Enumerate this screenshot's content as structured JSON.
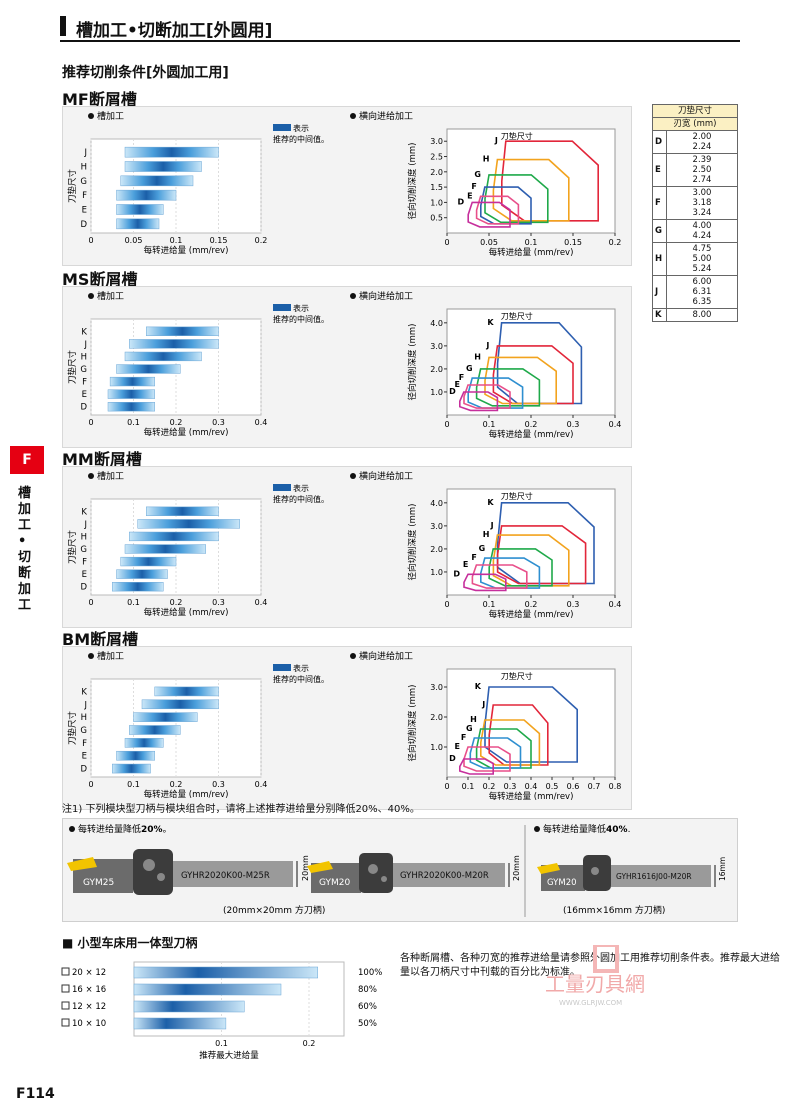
{
  "header": {
    "title": "槽加工•切断加工[外圆用]"
  },
  "intro": "推荐切削条件[外圆加工用]",
  "side": {
    "tab": "F",
    "text": "槽加工•切断加工"
  },
  "common": {
    "groove_label": "槽加工",
    "traverse_label": "横向进给加工",
    "legend_line1": "表示",
    "legend_line2": "推荐的中间值。",
    "feed_axis": "每转进给量 (mm/rev)",
    "insert_axis": "刀垫尺寸",
    "depth_axis": "径向切削深度 (mm)",
    "insert_size_label": "刀垫尺寸"
  },
  "sections": [
    {
      "title": "MF断屑槽",
      "bar_ticks": [
        "0",
        "0.05",
        "0.1",
        "0.15",
        "0.2"
      ],
      "bar_max": 0.2,
      "bars": [
        {
          "k": "J",
          "lo": 0.04,
          "hi": 0.15
        },
        {
          "k": "H",
          "lo": 0.04,
          "hi": 0.13
        },
        {
          "k": "G",
          "lo": 0.035,
          "hi": 0.12
        },
        {
          "k": "F",
          "lo": 0.03,
          "hi": 0.1
        },
        {
          "k": "E",
          "lo": 0.03,
          "hi": 0.085
        },
        {
          "k": "D",
          "lo": 0.03,
          "hi": 0.08
        }
      ],
      "tr_xticks": [
        "0",
        "0.05",
        "0.1",
        "0.15",
        "0.2"
      ],
      "tr_xmax": 0.2,
      "tr_yticks": [
        "0.5",
        "1.0",
        "1.5",
        "2.0",
        "2.5",
        "3.0"
      ],
      "tr_ymax": 3.4,
      "regions": [
        {
          "k": "J",
          "c": "#e2263a",
          "x0": 0.07,
          "x1": 0.18,
          "d0": 0.4,
          "d1": 3.0
        },
        {
          "k": "H",
          "c": "#f2a31e",
          "x0": 0.06,
          "x1": 0.145,
          "d0": 0.4,
          "d1": 2.4
        },
        {
          "k": "G",
          "c": "#1fa94a",
          "x0": 0.05,
          "x1": 0.12,
          "d0": 0.35,
          "d1": 1.9
        },
        {
          "k": "F",
          "c": "#2e5fb0",
          "x0": 0.045,
          "x1": 0.1,
          "d0": 0.3,
          "d1": 1.5
        },
        {
          "k": "E",
          "c": "#e84f8a",
          "x0": 0.04,
          "x1": 0.085,
          "d0": 0.3,
          "d1": 1.2
        },
        {
          "k": "D",
          "c": "#c62f9c",
          "x0": 0.03,
          "x1": 0.075,
          "d0": 0.2,
          "d1": 1.0
        }
      ]
    },
    {
      "title": "MS断屑槽",
      "bar_ticks": [
        "0",
        "0.1",
        "0.2",
        "0.3",
        "0.4"
      ],
      "bar_max": 0.4,
      "bars": [
        {
          "k": "K",
          "lo": 0.13,
          "hi": 0.3
        },
        {
          "k": "J",
          "lo": 0.09,
          "hi": 0.3
        },
        {
          "k": "H",
          "lo": 0.08,
          "hi": 0.26
        },
        {
          "k": "G",
          "lo": 0.06,
          "hi": 0.21
        },
        {
          "k": "F",
          "lo": 0.045,
          "hi": 0.15
        },
        {
          "k": "E",
          "lo": 0.04,
          "hi": 0.15
        },
        {
          "k": "D",
          "lo": 0.04,
          "hi": 0.15
        }
      ],
      "tr_xticks": [
        "0",
        "0.1",
        "0.2",
        "0.3",
        "0.4"
      ],
      "tr_xmax": 0.4,
      "tr_yticks": [
        "1.0",
        "2.0",
        "3.0",
        "4.0"
      ],
      "tr_ymax": 4.6,
      "regions": [
        {
          "k": "K",
          "c": "#2e5fb0",
          "x0": 0.13,
          "x1": 0.32,
          "d0": 0.5,
          "d1": 4.0
        },
        {
          "k": "J",
          "c": "#e2263a",
          "x0": 0.12,
          "x1": 0.3,
          "d0": 0.5,
          "d1": 3.0
        },
        {
          "k": "H",
          "c": "#f2a31e",
          "x0": 0.1,
          "x1": 0.26,
          "d0": 0.5,
          "d1": 2.5
        },
        {
          "k": "G",
          "c": "#1fa94a",
          "x0": 0.08,
          "x1": 0.22,
          "d0": 0.4,
          "d1": 2.0
        },
        {
          "k": "F",
          "c": "#2e8fd0",
          "x0": 0.06,
          "x1": 0.18,
          "d0": 0.3,
          "d1": 1.6
        },
        {
          "k": "E",
          "c": "#e84f8a",
          "x0": 0.05,
          "x1": 0.15,
          "d0": 0.3,
          "d1": 1.3
        },
        {
          "k": "D",
          "c": "#c62f9c",
          "x0": 0.04,
          "x1": 0.12,
          "d0": 0.2,
          "d1": 1.0
        }
      ]
    },
    {
      "title": "MM断屑槽",
      "bar_ticks": [
        "0",
        "0.1",
        "0.2",
        "0.3",
        "0.4"
      ],
      "bar_max": 0.4,
      "bars": [
        {
          "k": "K",
          "lo": 0.13,
          "hi": 0.3
        },
        {
          "k": "J",
          "lo": 0.11,
          "hi": 0.35
        },
        {
          "k": "H",
          "lo": 0.09,
          "hi": 0.3
        },
        {
          "k": "G",
          "lo": 0.08,
          "hi": 0.27
        },
        {
          "k": "F",
          "lo": 0.07,
          "hi": 0.2
        },
        {
          "k": "E",
          "lo": 0.06,
          "hi": 0.18
        },
        {
          "k": "D",
          "lo": 0.05,
          "hi": 0.17
        }
      ],
      "tr_xticks": [
        "0",
        "0.1",
        "0.2",
        "0.3",
        "0.4"
      ],
      "tr_xmax": 0.4,
      "tr_yticks": [
        "1.0",
        "2.0",
        "3.0",
        "4.0"
      ],
      "tr_ymax": 4.6,
      "regions": [
        {
          "k": "K",
          "c": "#2e5fb0",
          "x0": 0.13,
          "x1": 0.35,
          "d0": 0.5,
          "d1": 4.0
        },
        {
          "k": "J",
          "c": "#e2263a",
          "x0": 0.13,
          "x1": 0.33,
          "d0": 0.5,
          "d1": 3.0
        },
        {
          "k": "H",
          "c": "#f2a31e",
          "x0": 0.12,
          "x1": 0.29,
          "d0": 0.4,
          "d1": 2.6
        },
        {
          "k": "G",
          "c": "#1fa94a",
          "x0": 0.11,
          "x1": 0.25,
          "d0": 0.4,
          "d1": 2.0
        },
        {
          "k": "F",
          "c": "#2e8fd0",
          "x0": 0.09,
          "x1": 0.22,
          "d0": 0.3,
          "d1": 1.6
        },
        {
          "k": "E",
          "c": "#e84f8a",
          "x0": 0.07,
          "x1": 0.19,
          "d0": 0.3,
          "d1": 1.3
        },
        {
          "k": "D",
          "c": "#c62f9c",
          "x0": 0.05,
          "x1": 0.14,
          "d0": 0.2,
          "d1": 0.9
        }
      ]
    },
    {
      "title": "BM断屑槽",
      "bar_ticks": [
        "0",
        "0.1",
        "0.2",
        "0.3",
        "0.4"
      ],
      "bar_max": 0.4,
      "bars": [
        {
          "k": "K",
          "lo": 0.15,
          "hi": 0.3
        },
        {
          "k": "J",
          "lo": 0.12,
          "hi": 0.3
        },
        {
          "k": "H",
          "lo": 0.1,
          "hi": 0.25
        },
        {
          "k": "G",
          "lo": 0.09,
          "hi": 0.21
        },
        {
          "k": "F",
          "lo": 0.08,
          "hi": 0.17
        },
        {
          "k": "E",
          "lo": 0.06,
          "hi": 0.15
        },
        {
          "k": "D",
          "lo": 0.05,
          "hi": 0.14
        }
      ],
      "tr_xticks": [
        "0",
        "0.1",
        "0.2",
        "0.3",
        "0.4",
        "0.5",
        "0.6",
        "0.7",
        "0.8"
      ],
      "tr_xmax": 0.8,
      "tr_yticks": [
        "1.0",
        "2.0",
        "3.0"
      ],
      "tr_ymax": 3.6,
      "regions": [
        {
          "k": "K",
          "c": "#2e5fb0",
          "x0": 0.2,
          "x1": 0.62,
          "d0": 0.5,
          "d1": 3.0
        },
        {
          "k": "J",
          "c": "#e2263a",
          "x0": 0.22,
          "x1": 0.48,
          "d0": 0.4,
          "d1": 2.4
        },
        {
          "k": "H",
          "c": "#f2a31e",
          "x0": 0.18,
          "x1": 0.44,
          "d0": 0.4,
          "d1": 1.9
        },
        {
          "k": "G",
          "c": "#1fa94a",
          "x0": 0.16,
          "x1": 0.4,
          "d0": 0.3,
          "d1": 1.6
        },
        {
          "k": "F",
          "c": "#2e8fd0",
          "x0": 0.13,
          "x1": 0.35,
          "d0": 0.3,
          "d1": 1.3
        },
        {
          "k": "E",
          "c": "#e84f8a",
          "x0": 0.1,
          "x1": 0.3,
          "d0": 0.2,
          "d1": 1.0
        },
        {
          "k": "D",
          "c": "#c62f9c",
          "x0": 0.08,
          "x1": 0.22,
          "d0": 0.1,
          "d1": 0.6
        }
      ]
    }
  ],
  "holder_table": {
    "head1": "刀垫尺寸",
    "head2": "刃宽 (mm)",
    "rows": [
      {
        "k": "D",
        "v": [
          "2.00",
          "2.24"
        ]
      },
      {
        "k": "E",
        "v": [
          "2.39",
          "2.50",
          "2.74"
        ]
      },
      {
        "k": "F",
        "v": [
          "3.00",
          "3.18",
          "3.24"
        ]
      },
      {
        "k": "G",
        "v": [
          "4.00",
          "4.24"
        ]
      },
      {
        "k": "H",
        "v": [
          "4.75",
          "5.00",
          "5.24"
        ]
      },
      {
        "k": "J",
        "v": [
          "6.00",
          "6.31",
          "6.35"
        ]
      },
      {
        "k": "K",
        "v": [
          "8.00"
        ]
      }
    ]
  },
  "note": "注1)  下列模块型刀柄与模块组合时，请将上述推荐进给量分别降低20%、40%。",
  "reduce": {
    "left_label": "每转进给量降低",
    "left_pct": "20%",
    "left_suffix": "。",
    "right_label": "每转进给量降低",
    "right_pct": "40%",
    "right_suffix": ".",
    "tools": [
      {
        "mod": "GYM25",
        "holder": "GYHR2020K00-M25R",
        "size": "20mm"
      },
      {
        "mod": "GYM20",
        "holder": "GYHR2020K00-M20R",
        "size": "20mm"
      },
      {
        "mod": "GYM20",
        "holder": "GYHR1616J00-M20R",
        "size": "16mm"
      }
    ],
    "caption_left": "(20mm×20mm 方刀柄)",
    "caption_right": "(16mm×16mm 方刀柄)"
  },
  "small": {
    "title": "小型车床用一体型刀柄",
    "x_label": "推荐最大进给量",
    "x_ticks": [
      "0.1",
      "0.2"
    ],
    "rows": [
      {
        "size": "20 × 12",
        "pct": "100%",
        "frac": 1.0
      },
      {
        "size": "16 × 16",
        "pct": "80%",
        "frac": 0.8
      },
      {
        "size": "12 × 12",
        "pct": "60%",
        "frac": 0.6
      },
      {
        "size": "10 × 10",
        "pct": "50%",
        "frac": 0.5
      }
    ],
    "desc": "各种断屑槽、各种刃宽的推荐进给量请参照外圆加工用推荐切削条件表。推荐最大进给量以各刀柄尺寸中刊载的百分比为标准。"
  },
  "watermark": {
    "brand": "工量刃具網",
    "url": "WWW.GLRJW.COM"
  },
  "page_number": "F114",
  "colors": {
    "accent": "#e50012",
    "bar_dark": "#1b5fa8",
    "bar_light": "#bfe1f6",
    "table_head": "#fbf0c3"
  }
}
